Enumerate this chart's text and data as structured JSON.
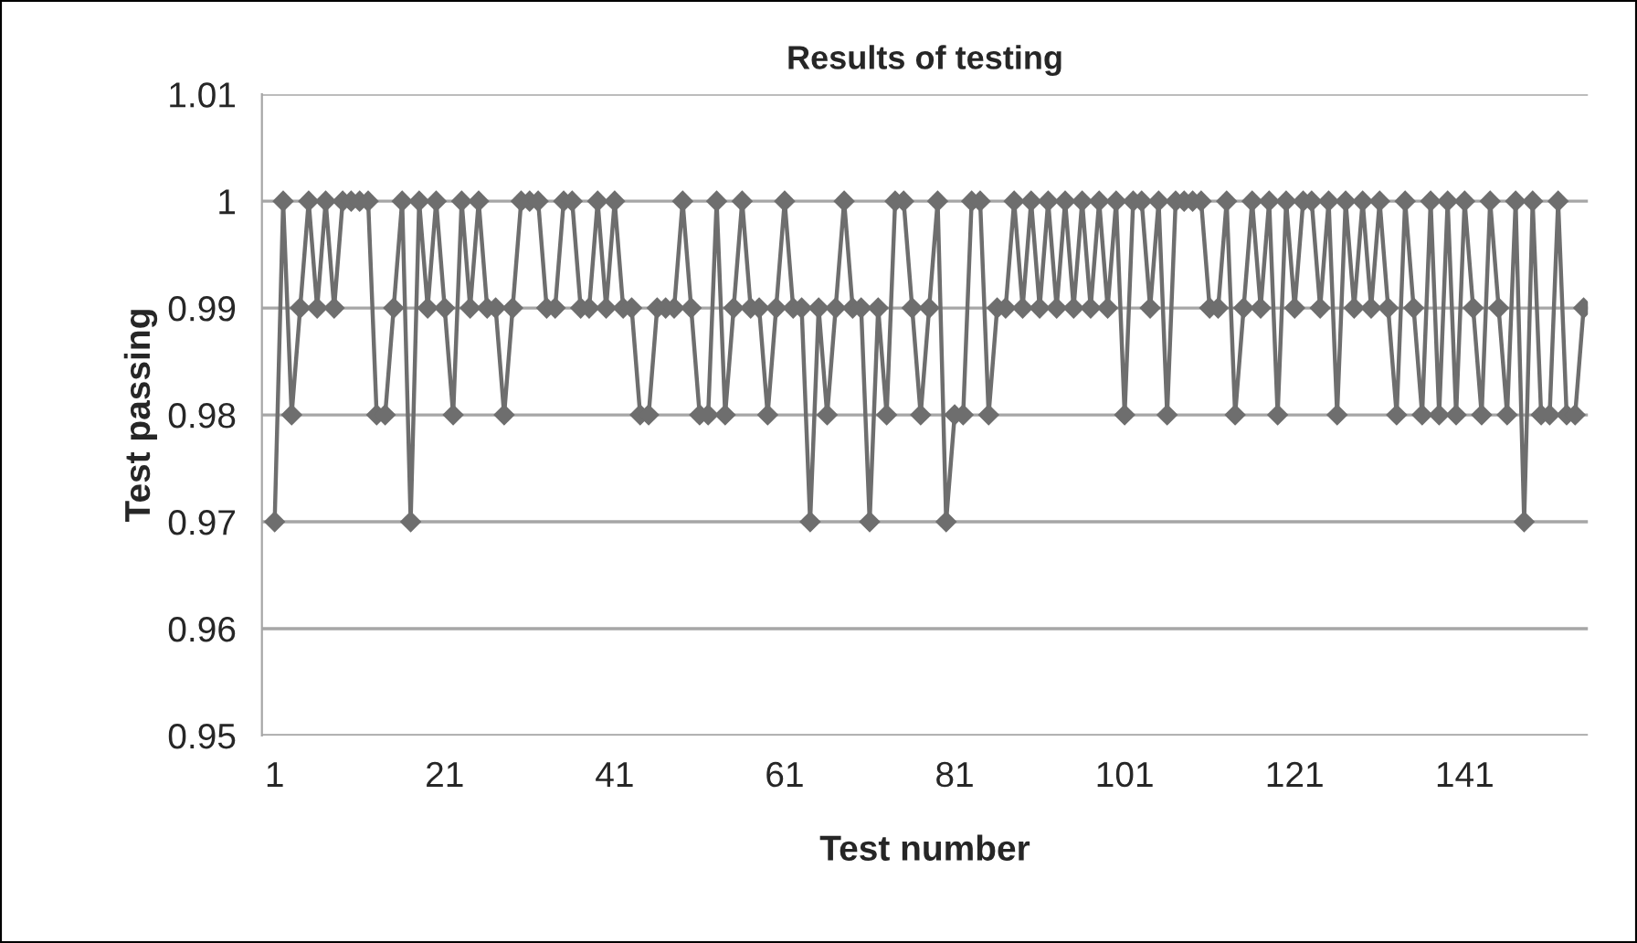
{
  "chart_data": {
    "type": "line",
    "title": "Results of testing",
    "xlabel": "Test number",
    "ylabel": "Test passing",
    "categories": [
      "1",
      null,
      null,
      null,
      null,
      null,
      null,
      null,
      null,
      null,
      null,
      null,
      null,
      null,
      null,
      null,
      null,
      null,
      null,
      null,
      "21",
      null,
      null,
      null,
      null,
      null,
      null,
      null,
      null,
      null,
      null,
      null,
      null,
      null,
      null,
      null,
      null,
      null,
      null,
      null,
      "41",
      null,
      null,
      null,
      null,
      null,
      null,
      null,
      null,
      null,
      null,
      null,
      null,
      null,
      null,
      null,
      null,
      null,
      null,
      null,
      "61",
      null,
      null,
      null,
      null,
      null,
      null,
      null,
      null,
      null,
      null,
      null,
      null,
      null,
      null,
      null,
      null,
      null,
      null,
      null,
      "81",
      null,
      null,
      null,
      null,
      null,
      null,
      null,
      null,
      null,
      null,
      null,
      null,
      null,
      null,
      null,
      null,
      null,
      null,
      null,
      "101",
      null,
      null,
      null,
      null,
      null,
      null,
      null,
      null,
      null,
      null,
      null,
      null,
      null,
      null,
      null,
      null,
      null,
      null,
      null,
      "121",
      null,
      null,
      null,
      null,
      null,
      null,
      null,
      null,
      null,
      null,
      null,
      null,
      null,
      null,
      null,
      null,
      null,
      null,
      null,
      "141",
      null,
      null,
      null,
      null,
      null,
      null,
      null,
      null,
      null,
      null,
      null,
      null,
      null,
      null
    ],
    "series": [
      {
        "color": "#6e6e6e",
        "values": [
          0.97,
          1,
          0.98,
          0.99,
          1,
          0.99,
          1,
          0.99,
          1,
          1,
          1,
          1,
          0.98,
          0.98,
          0.99,
          1,
          0.97,
          1,
          0.99,
          1,
          0.99,
          0.98,
          1,
          0.99,
          1,
          0.99,
          0.99,
          0.98,
          0.99,
          1,
          1,
          1,
          0.99,
          0.99,
          1,
          1,
          0.99,
          0.99,
          1,
          0.99,
          1,
          0.99,
          0.99,
          0.98,
          0.98,
          0.99,
          0.99,
          0.99,
          1,
          0.99,
          0.98,
          0.98,
          1,
          0.98,
          0.99,
          1,
          0.99,
          0.99,
          0.98,
          0.99,
          1,
          0.99,
          0.99,
          0.97,
          0.99,
          0.98,
          0.99,
          1,
          0.99,
          0.99,
          0.97,
          0.99,
          0.98,
          1,
          1,
          0.99,
          0.98,
          0.99,
          1,
          0.97,
          0.98,
          0.98,
          1,
          1,
          0.98,
          0.99,
          0.99,
          1,
          0.99,
          1,
          0.99,
          1,
          0.99,
          1,
          0.99,
          1,
          0.99,
          1,
          0.99,
          1,
          0.98,
          1,
          1,
          0.99,
          1,
          0.98,
          1,
          1,
          1,
          1,
          0.99,
          0.99,
          1,
          0.98,
          0.99,
          1,
          0.99,
          1,
          0.98,
          1,
          0.99,
          1,
          1,
          0.99,
          1,
          0.98,
          1,
          0.99,
          1,
          0.99,
          1,
          0.99,
          0.98,
          1,
          0.99,
          0.98,
          1,
          0.98,
          1,
          0.98,
          1,
          0.99,
          0.98,
          1,
          0.99,
          0.98,
          1,
          0.97,
          1,
          0.98,
          0.98,
          1,
          0.98,
          0.98,
          0.99
        ]
      }
    ],
    "ylim": [
      0.95,
      1.01
    ],
    "yticks": [
      0.95,
      0.96,
      0.97,
      0.98,
      0.99,
      {
        "value": 1,
        "label": "1"
      },
      1.01
    ],
    "grid": "y",
    "marker": "diamond",
    "line_style": "solid"
  }
}
